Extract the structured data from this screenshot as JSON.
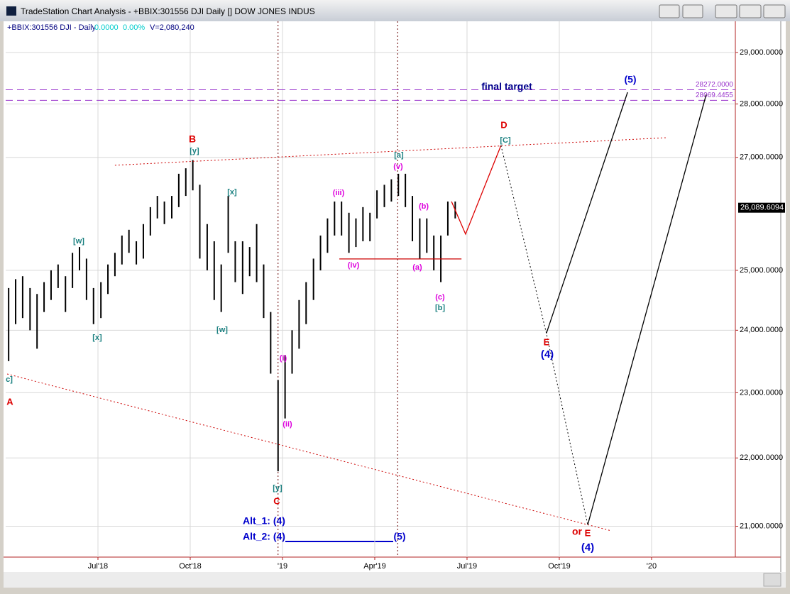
{
  "window": {
    "title": "TradeStation Chart Analysis - +BBIX:301556 DJI Daily [] DOW JONES INDUS"
  },
  "chart_data": {
    "type": "ohlc",
    "symbol": "+BBIX:301556 DJI - Daily",
    "change": "0.0000",
    "change_pct": "0.00%",
    "volume": "V=2,080,240",
    "log_scale": true,
    "grid": true,
    "color": "#000000",
    "xlim": [
      2018.25,
      2020.227
    ],
    "ylim": [
      20563,
      29623
    ],
    "xticks": [
      {
        "value": 2018.5,
        "label": "Jul'18"
      },
      {
        "value": 2018.75,
        "label": "Oct'18"
      },
      {
        "value": 2019,
        "label": "'19"
      },
      {
        "value": 2019.25,
        "label": "Apr'19"
      },
      {
        "value": 2019.5,
        "label": "Jul'19"
      },
      {
        "value": 2019.75,
        "label": "Oct'19"
      },
      {
        "value": 2020,
        "label": "'20"
      }
    ],
    "yticks": [
      {
        "value": 29000,
        "label": "29,000.0000"
      },
      {
        "value": 28000,
        "label": "28,000.0000"
      },
      {
        "value": 27000,
        "label": "27,000.0000"
      },
      {
        "value": 25000,
        "label": "25,000.0000"
      },
      {
        "value": 24000,
        "label": "24,000.0000"
      },
      {
        "value": 23000,
        "label": "23,000.0000"
      },
      {
        "value": 22000,
        "label": "22,000.0000"
      },
      {
        "value": 21000,
        "label": "21,000.0000"
      }
    ],
    "x": [
      2018.258,
      2018.277,
      2018.296,
      2018.316,
      2018.335,
      2018.354,
      2018.373,
      2018.392,
      2018.412,
      2018.431,
      2018.45,
      2018.469,
      2018.488,
      2018.508,
      2018.527,
      2018.546,
      2018.565,
      2018.584,
      2018.604,
      2018.623,
      2018.642,
      2018.661,
      2018.68,
      2018.7,
      2018.719,
      2018.738,
      2018.757,
      2018.776,
      2018.796,
      2018.815,
      2018.834,
      2018.853,
      2018.872,
      2018.892,
      2018.911,
      2018.93,
      2018.949,
      2018.968,
      2018.988,
      2019.007,
      2019.026,
      2019.045,
      2019.064,
      2019.084,
      2019.103,
      2019.122,
      2019.141,
      2019.16,
      2019.18,
      2019.199,
      2019.218,
      2019.237,
      2019.256,
      2019.276,
      2019.295,
      2019.314,
      2019.333,
      2019.352,
      2019.372,
      2019.391,
      2019.41,
      2019.429,
      2019.448,
      2019.468
    ],
    "high": [
      24700,
      24850,
      24900,
      24700,
      24600,
      24800,
      25000,
      25100,
      24900,
      25300,
      25400,
      25200,
      24700,
      24800,
      25100,
      25300,
      25600,
      25700,
      25500,
      25800,
      26100,
      26300,
      26200,
      26300,
      26700,
      26800,
      26950,
      26500,
      25800,
      25500,
      25100,
      26300,
      25500,
      25500,
      25400,
      25800,
      25100,
      24300,
      23200,
      23600,
      24000,
      24500,
      24800,
      25200,
      25600,
      25900,
      26200,
      26200,
      26000,
      25900,
      26100,
      26000,
      26400,
      26500,
      26600,
      26700,
      26700,
      26300,
      25900,
      25900,
      25600,
      25600,
      26200,
      26200
    ],
    "low": [
      23500,
      24100,
      24200,
      24000,
      23700,
      24300,
      24500,
      24700,
      24300,
      24700,
      25000,
      24500,
      24100,
      24200,
      24600,
      24900,
      25100,
      25300,
      25100,
      25200,
      25600,
      25900,
      25800,
      25900,
      26100,
      26300,
      26400,
      25200,
      25000,
      24500,
      24300,
      25300,
      24800,
      24600,
      24900,
      24800,
      24200,
      23300,
      21800,
      22600,
      23300,
      23700,
      24100,
      24500,
      25000,
      25300,
      25600,
      25600,
      25300,
      25400,
      25500,
      25500,
      25900,
      26100,
      26200,
      26300,
      26100,
      25500,
      25200,
      25300,
      25000,
      24800,
      25600,
      25900
    ],
    "last_price": {
      "value": 26089.6094,
      "label": "26,089.6094"
    },
    "targets": [
      {
        "value": 28272,
        "label": "28272.0000"
      },
      {
        "value": 28069.4455,
        "label": "28069.4455"
      }
    ],
    "overlays": [
      {
        "color": "#cc0000",
        "style": "dotted",
        "x": [
          2018.546,
          2020.042
        ],
        "values": [
          26855,
          27365
        ]
      },
      {
        "color": "#cc0000",
        "style": "dotted",
        "x": [
          2018.254,
          2019.888
        ],
        "values": [
          23295,
          20938
        ]
      },
      {
        "color": "#cc0000",
        "style": "solid",
        "x": [
          2019.154,
          2019.485
        ],
        "values": [
          25195,
          25195
        ]
      },
      {
        "color": "#dd0000",
        "style": "solid",
        "x": [
          2019.458,
          2019.496,
          2019.592
        ],
        "values": [
          26200,
          25625,
          27220
        ]
      },
      {
        "color": "#000000",
        "style": "dotted",
        "x": [
          2019.592,
          2019.715,
          2019.827
        ],
        "values": [
          27220,
          23950,
          21020
        ]
      },
      {
        "color": "#000000",
        "style": "solid",
        "x": [
          2019.715,
          2019.935
        ],
        "values": [
          23950,
          28225
        ]
      },
      {
        "color": "#000000",
        "style": "solid",
        "x": [
          2019.827,
          2020.148
        ],
        "values": [
          21020,
          28180
        ]
      }
    ],
    "verticals": [
      2018.988,
      2019.312
    ],
    "annotations": [
      {
        "text": "A",
        "color": "#dd0000"
      },
      {
        "text": "B",
        "color": "#dd0000"
      },
      {
        "text": "[y]",
        "color": "#1a8080"
      },
      {
        "text": "[w]",
        "color": "#1a8080"
      },
      {
        "text": "[x]",
        "color": "#1a8080"
      },
      {
        "text": "[x]",
        "color": "#1a8080"
      },
      {
        "text": "[w]",
        "color": "#1a8080"
      },
      {
        "text": "c]",
        "color": "#1a8080"
      },
      {
        "text": "C",
        "color": "#dd0000"
      },
      {
        "text": "[y]",
        "color": "#1a8080"
      },
      {
        "text": "(i)",
        "color": "#dd00dd"
      },
      {
        "text": "(ii)",
        "color": "#dd00dd"
      },
      {
        "text": "(iii)",
        "color": "#dd00dd"
      },
      {
        "text": "(iv)",
        "color": "#dd00dd"
      },
      {
        "text": "[a]",
        "color": "#1a8080"
      },
      {
        "text": "(v)",
        "color": "#dd00dd"
      },
      {
        "text": "(b)",
        "color": "#dd00dd"
      },
      {
        "text": "(a)",
        "color": "#dd00dd"
      },
      {
        "text": "(c)",
        "color": "#dd00dd"
      },
      {
        "text": "[b]",
        "color": "#1a8080"
      },
      {
        "text": "D",
        "color": "#dd0000"
      },
      {
        "text": "[C]",
        "color": "#1a8080"
      },
      {
        "text": "E",
        "color": "#dd0000"
      },
      {
        "text": "(4)",
        "color": "#0000cc"
      },
      {
        "text": "(5)",
        "color": "#0000cc"
      },
      {
        "text": "final target",
        "color": "#00008b"
      },
      {
        "text": "or",
        "color": "#dd0000"
      },
      {
        "text": "E",
        "color": "#dd0000"
      },
      {
        "text": "(4)",
        "color": "#0000cc"
      },
      {
        "text": "Alt_1: (4)",
        "color": "#0000cc"
      },
      {
        "text": "Alt_2: (4)",
        "color": "#0000cc"
      },
      {
        "text": "(5)",
        "color": "#0000cc"
      }
    ]
  }
}
